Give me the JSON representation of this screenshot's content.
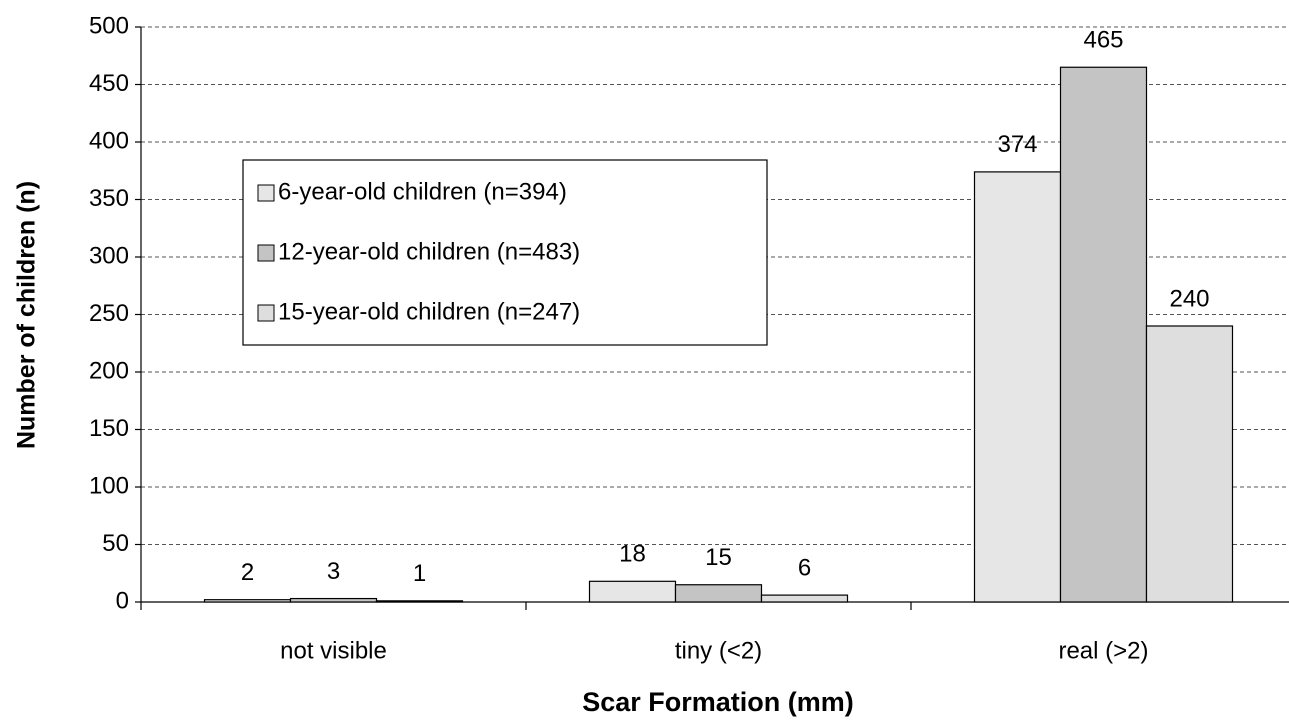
{
  "chart_data": {
    "type": "bar",
    "x_label": "Scar Formation (mm)",
    "y_label": "Number of children (n)",
    "categories": [
      "not visible",
      "tiny (<2)",
      "real (>2)"
    ],
    "series": [
      {
        "name": "6-year-old children (n=394)",
        "color": "#e6e6e6",
        "values": [
          2,
          18,
          374
        ]
      },
      {
        "name": "12-year-old children (n=483)",
        "color": "#c4c4c4",
        "values": [
          3,
          15,
          465
        ]
      },
      {
        "name": "15-year-old children (n=247)",
        "color": "#dedede",
        "values": [
          1,
          6,
          240
        ]
      }
    ],
    "ylim": [
      0,
      500
    ],
    "yticks": [
      0,
      50,
      100,
      150,
      200,
      250,
      300,
      350,
      400,
      450,
      500
    ],
    "grid": true,
    "legend": "upper left"
  }
}
